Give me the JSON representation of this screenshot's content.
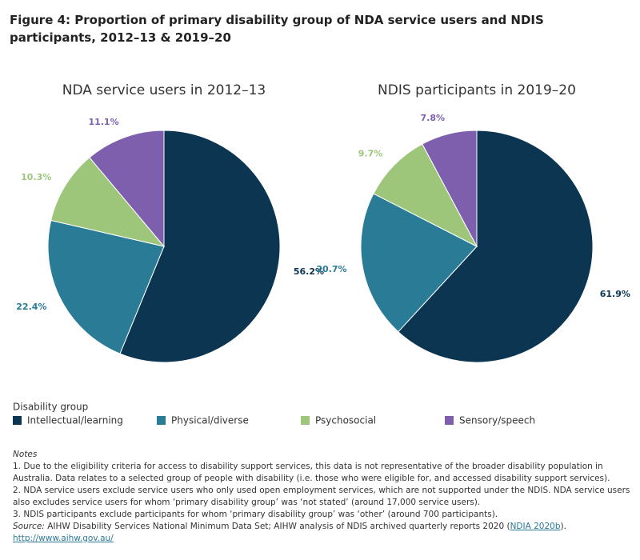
{
  "title": "Figure 4: Proportion of primary disability group of NDA service users and NDIS participants, 2012–13 & 2019–20",
  "chart_data": [
    {
      "type": "pie",
      "title": "NDA service users in 2012–13",
      "categories": [
        "Intellectual/learning",
        "Physical/diverse",
        "Psychosocial",
        "Sensory/speech"
      ],
      "values": [
        56.2,
        22.4,
        10.3,
        11.1
      ],
      "value_labels": [
        "56.2%",
        "22.4%",
        "10.3%",
        "11.1%"
      ],
      "colors": [
        "#0b3550",
        "#2a7b96",
        "#9ec67b",
        "#7d5fad"
      ]
    },
    {
      "type": "pie",
      "title": "NDIS participants in 2019–20",
      "categories": [
        "Intellectual/learning",
        "Physical/diverse",
        "Psychosocial",
        "Sensory/speech"
      ],
      "values": [
        61.9,
        20.7,
        9.7,
        7.8
      ],
      "value_labels": [
        "61.9%",
        "20.7%",
        "9.7%",
        "7.8%"
      ],
      "colors": [
        "#0b3550",
        "#2a7b96",
        "#9ec67b",
        "#7d5fad"
      ]
    }
  ],
  "legend_title": "Disability group",
  "notes": {
    "heading": "Notes",
    "items": [
      "1. Due to the eligibility criteria for access to disability support services, this data is not representative of the broader disability population in Australia. Data relates to a selected group of people with disability (i.e. those who were eligible for, and accessed disability support services).",
      "2. NDA service users exclude service users who only used open employment services, which are not supported under the NDIS. NDA service users also excludes service users for whom ‘primary disability group’ was ‘not stated’ (around 17,000 service users).",
      "3. NDIS participants exclude participants for whom ‘primary disability group’ was ‘other’ (around 700 participants)."
    ],
    "source_label": "Source:",
    "source_text": "AIHW Disability Services National Minimum Data Set; AIHW analysis of NDIS archived quarterly reports 2020 (",
    "source_link": "NDIA 2020b",
    "source_end": ").",
    "url": "http://www.aihw.gov.au/"
  }
}
